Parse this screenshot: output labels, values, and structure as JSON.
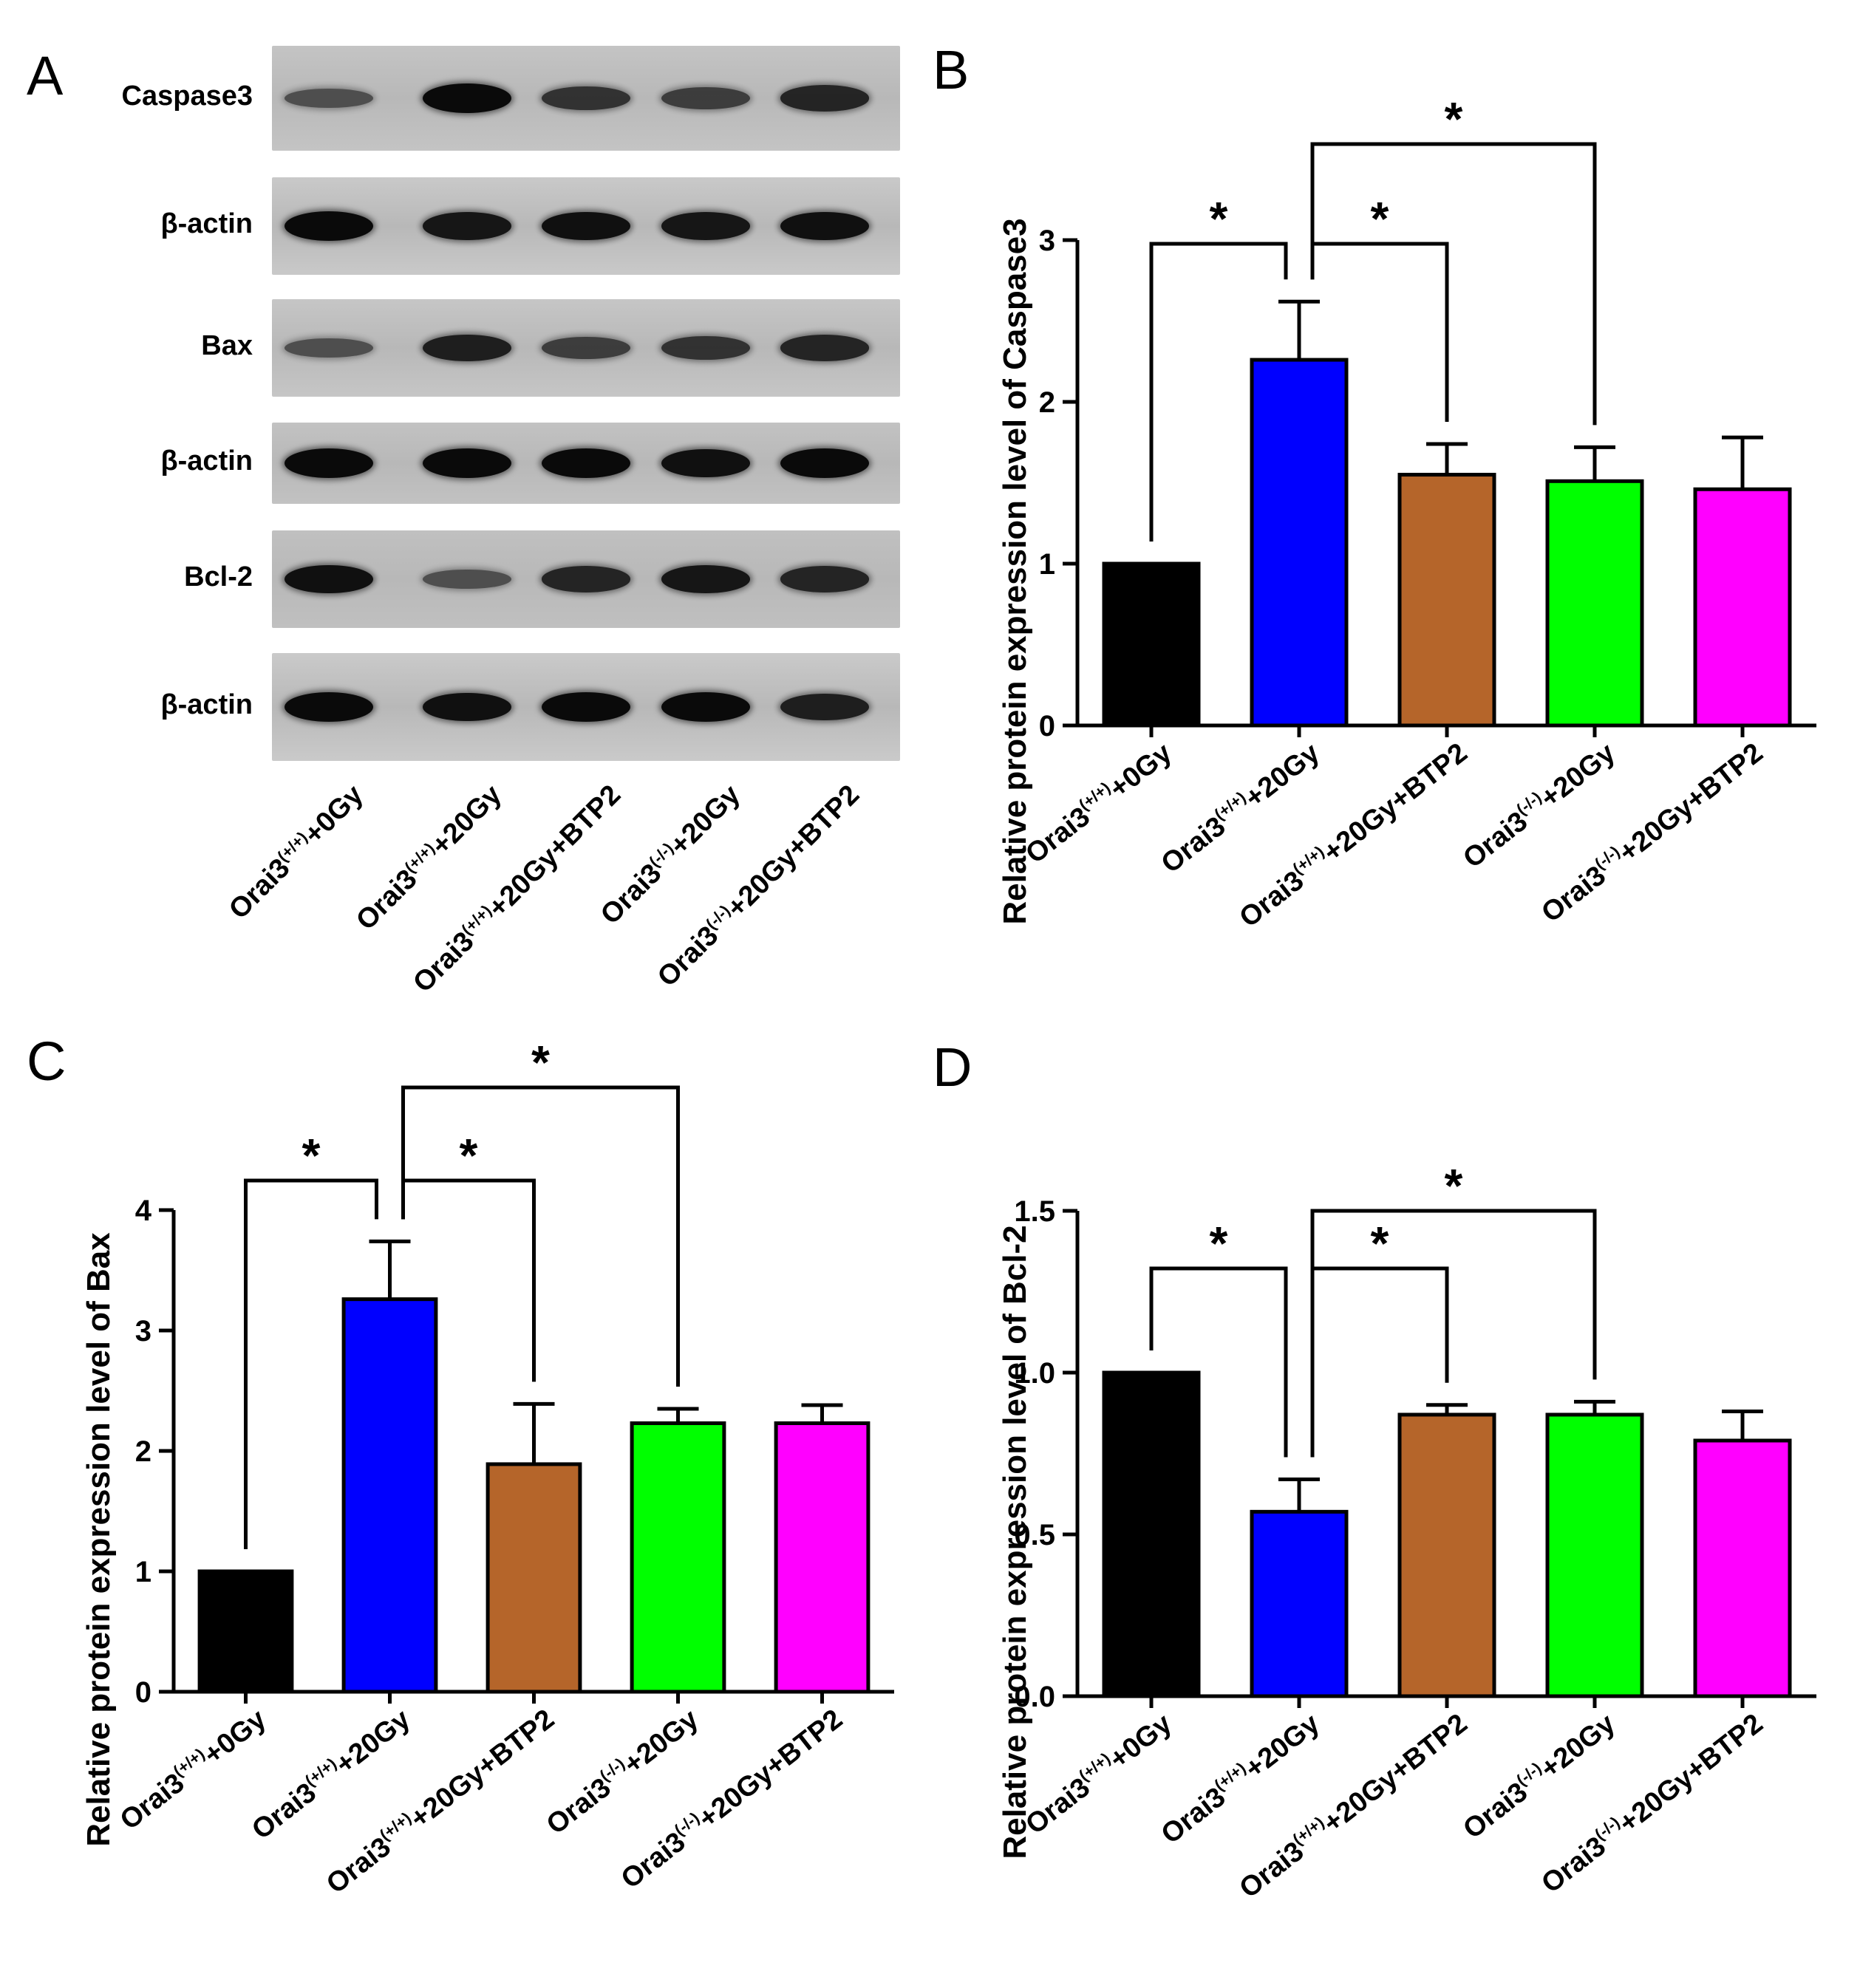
{
  "panel_letters": [
    "A",
    "B",
    "C",
    "D"
  ],
  "western_blot": {
    "rows": [
      {
        "label": "Caspase3",
        "bg": "#c4c4c4",
        "intensity": [
          0.45,
          1.0,
          0.7,
          0.6,
          0.8
        ]
      },
      {
        "label": "β-actin",
        "bg": "#c9c9c9",
        "intensity": [
          1.0,
          0.9,
          0.95,
          0.9,
          0.95
        ]
      },
      {
        "label": "Bax",
        "bg": "#c6c6c6",
        "intensity": [
          0.45,
          0.85,
          0.6,
          0.7,
          0.8
        ]
      },
      {
        "label": "β-actin",
        "bg": "#c2c2c2",
        "intensity": [
          1.0,
          1.0,
          1.0,
          0.95,
          1.0
        ]
      },
      {
        "label": "Bcl-2",
        "bg": "#c0c0c0",
        "intensity": [
          0.95,
          0.45,
          0.8,
          0.9,
          0.8
        ]
      },
      {
        "label": "β-actin",
        "bg": "#cacaca",
        "intensity": [
          1.0,
          0.95,
          1.0,
          1.0,
          0.85
        ]
      }
    ],
    "lane_labels": [
      {
        "base": "Orai3",
        "sup": "(+/+)",
        "rest": "+0Gy"
      },
      {
        "base": "Orai3",
        "sup": "(+/+)",
        "rest": "+20Gy"
      },
      {
        "base": "Orai3",
        "sup": "(+/+)",
        "rest": "+20Gy+BTP2"
      },
      {
        "base": "Orai3",
        "sup": "(-/-)",
        "rest": "+20Gy"
      },
      {
        "base": "Orai3",
        "sup": "(-/-)",
        "rest": "+20Gy+BTP2"
      }
    ]
  },
  "chart_data": [
    {
      "panel": "B",
      "type": "bar",
      "ylabel": "Relative protein expression level of Caspase3",
      "ylim": [
        0,
        3
      ],
      "yticks": [
        "0",
        "1",
        "2",
        "3"
      ],
      "categories": [
        "Orai3(+/+)+0Gy",
        "Orai3(+/+)+20Gy",
        "Orai3(+/+)+20Gy+BTP2",
        "Orai3(-/-)+20Gy",
        "Orai3(-/-)+20Gy+BTP2"
      ],
      "values": [
        1.0,
        2.26,
        1.55,
        1.51,
        1.46
      ],
      "errors": [
        0,
        0.36,
        0.19,
        0.21,
        0.32
      ],
      "colors": [
        "#000000",
        "#0000ff",
        "#b5652a",
        "#00ff00",
        "#ff00ff"
      ],
      "significance": [
        {
          "from": 0,
          "to": 1,
          "label": "*"
        },
        {
          "from": 1,
          "to": 2,
          "label": "*"
        },
        {
          "from": 1,
          "to": 3,
          "label": "*"
        }
      ]
    },
    {
      "panel": "C",
      "type": "bar",
      "ylabel": "Relative protein expression level of Bax",
      "ylim": [
        0,
        4
      ],
      "yticks": [
        "0",
        "1",
        "2",
        "3",
        "4"
      ],
      "categories": [
        "Orai3(+/+)+0Gy",
        "Orai3(+/+)+20Gy",
        "Orai3(+/+)+20Gy+BTP2",
        "Orai3(-/-)+20Gy",
        "Orai3(-/-)+20Gy+BTP2"
      ],
      "values": [
        1.0,
        3.26,
        1.89,
        2.23,
        2.23
      ],
      "errors": [
        0,
        0.48,
        0.5,
        0.12,
        0.15
      ],
      "colors": [
        "#000000",
        "#0000ff",
        "#b5652a",
        "#00ff00",
        "#ff00ff"
      ],
      "significance": [
        {
          "from": 0,
          "to": 1,
          "label": "*"
        },
        {
          "from": 1,
          "to": 2,
          "label": "*"
        },
        {
          "from": 1,
          "to": 3,
          "label": "*"
        }
      ]
    },
    {
      "panel": "D",
      "type": "bar",
      "ylabel": "Relative protein expression level of Bcl-2",
      "ylim": [
        0,
        1.5
      ],
      "yticks": [
        "0.0",
        "0.5",
        "1.0",
        "1.5"
      ],
      "categories": [
        "Orai3(+/+)+0Gy",
        "Orai3(+/+)+20Gy",
        "Orai3(+/+)+20Gy+BTP2",
        "Orai3(-/-)+20Gy",
        "Orai3(-/-)+20Gy+BTP2"
      ],
      "values": [
        1.0,
        0.57,
        0.87,
        0.87,
        0.79
      ],
      "errors": [
        0,
        0.1,
        0.03,
        0.04,
        0.09
      ],
      "colors": [
        "#000000",
        "#0000ff",
        "#b5652a",
        "#00ff00",
        "#ff00ff"
      ],
      "significance": [
        {
          "from": 0,
          "to": 1,
          "label": "*"
        },
        {
          "from": 1,
          "to": 2,
          "label": "*"
        },
        {
          "from": 1,
          "to": 3,
          "label": "*"
        }
      ]
    }
  ]
}
